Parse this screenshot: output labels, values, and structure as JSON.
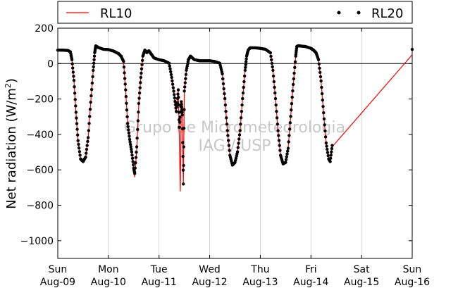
{
  "chart_data": {
    "type": "line",
    "ylabel": "Net radiation (W/m",
    "ylabel_sup": "2",
    "ylabel_close": ")",
    "ylim": [
      -1100,
      200
    ],
    "yticks": [
      200,
      0,
      -200,
      -400,
      -600,
      -800,
      -1000
    ],
    "ytick_labels": [
      "200",
      "0",
      "−200",
      "−400",
      "−600",
      "−800",
      "−1000"
    ],
    "xlim_days": [
      0,
      7
    ],
    "xticks": [
      {
        "day": 0,
        "top": "Sun",
        "bottom": "Aug-09"
      },
      {
        "day": 1,
        "top": "Mon",
        "bottom": "Aug-10"
      },
      {
        "day": 2,
        "top": "Tue",
        "bottom": "Aug-11"
      },
      {
        "day": 3,
        "top": "Wed",
        "bottom": "Aug-12"
      },
      {
        "day": 4,
        "top": "Thu",
        "bottom": "Aug-13"
      },
      {
        "day": 5,
        "top": "Fri",
        "bottom": "Aug-14"
      },
      {
        "day": 6,
        "top": "Sat",
        "bottom": "Aug-15"
      },
      {
        "day": 7,
        "top": "Sun",
        "bottom": "Aug-16"
      }
    ],
    "grid": "vertical",
    "zero_line": true,
    "legend_position": "top",
    "watermark": [
      "Grupo de Micrometeorologia",
      "IAG / USP"
    ],
    "series": [
      {
        "name": "RL10",
        "color": "#ff0000",
        "style": "line",
        "points": [
          [
            0.0,
            75
          ],
          [
            0.1,
            75
          ],
          [
            0.2,
            73
          ],
          [
            0.25,
            65
          ],
          [
            0.28,
            20
          ],
          [
            0.32,
            -100
          ],
          [
            0.36,
            -280
          ],
          [
            0.4,
            -440
          ],
          [
            0.45,
            -540
          ],
          [
            0.5,
            -555
          ],
          [
            0.55,
            -530
          ],
          [
            0.6,
            -420
          ],
          [
            0.65,
            -220
          ],
          [
            0.7,
            -40
          ],
          [
            0.73,
            60
          ],
          [
            0.75,
            100
          ],
          [
            0.8,
            90
          ],
          [
            0.9,
            80
          ],
          [
            1.0,
            78
          ],
          [
            1.1,
            70
          ],
          [
            1.2,
            55
          ],
          [
            1.25,
            40
          ],
          [
            1.3,
            10
          ],
          [
            1.34,
            -150
          ],
          [
            1.38,
            -340
          ],
          [
            1.42,
            -430
          ],
          [
            1.46,
            -500
          ],
          [
            1.5,
            -600
          ],
          [
            1.52,
            -640
          ],
          [
            1.56,
            -480
          ],
          [
            1.6,
            -230
          ],
          [
            1.64,
            -80
          ],
          [
            1.68,
            40
          ],
          [
            1.72,
            75
          ],
          [
            1.76,
            60
          ],
          [
            1.8,
            70
          ],
          [
            1.85,
            50
          ],
          [
            1.9,
            30
          ],
          [
            2.0,
            20
          ],
          [
            2.1,
            15
          ],
          [
            2.2,
            0
          ],
          [
            2.25,
            -80
          ],
          [
            2.3,
            -180
          ],
          [
            2.34,
            -280
          ],
          [
            2.38,
            -150
          ],
          [
            2.4,
            -420
          ],
          [
            2.42,
            -720
          ],
          [
            2.44,
            -220
          ],
          [
            2.46,
            -300
          ],
          [
            2.48,
            -680
          ],
          [
            2.5,
            -160
          ],
          [
            2.54,
            -40
          ],
          [
            2.58,
            20
          ],
          [
            2.62,
            40
          ],
          [
            2.7,
            20
          ],
          [
            2.8,
            15
          ],
          [
            2.9,
            15
          ],
          [
            3.0,
            15
          ],
          [
            3.1,
            10
          ],
          [
            3.2,
            0
          ],
          [
            3.25,
            -60
          ],
          [
            3.3,
            -200
          ],
          [
            3.35,
            -380
          ],
          [
            3.4,
            -520
          ],
          [
            3.45,
            -575
          ],
          [
            3.5,
            -560
          ],
          [
            3.55,
            -500
          ],
          [
            3.6,
            -380
          ],
          [
            3.65,
            -200
          ],
          [
            3.7,
            -40
          ],
          [
            3.73,
            40
          ],
          [
            3.76,
            75
          ],
          [
            3.8,
            88
          ],
          [
            3.9,
            88
          ],
          [
            4.0,
            85
          ],
          [
            4.1,
            80
          ],
          [
            4.2,
            60
          ],
          [
            4.25,
            -40
          ],
          [
            4.3,
            -200
          ],
          [
            4.35,
            -380
          ],
          [
            4.4,
            -520
          ],
          [
            4.45,
            -568
          ],
          [
            4.5,
            -560
          ],
          [
            4.55,
            -480
          ],
          [
            4.6,
            -300
          ],
          [
            4.65,
            -120
          ],
          [
            4.7,
            40
          ],
          [
            4.72,
            95
          ],
          [
            4.75,
            100
          ],
          [
            4.8,
            98
          ],
          [
            4.9,
            95
          ],
          [
            5.0,
            85
          ],
          [
            5.05,
            75
          ],
          [
            5.1,
            60
          ],
          [
            5.15,
            20
          ],
          [
            5.2,
            -100
          ],
          [
            5.25,
            -280
          ],
          [
            5.3,
            -450
          ],
          [
            5.35,
            -540
          ],
          [
            5.38,
            -555
          ],
          [
            5.42,
            -470
          ],
          [
            7.0,
            50
          ]
        ]
      },
      {
        "name": "RL20",
        "color": "#000000",
        "style": "dots",
        "points": [
          [
            0.0,
            76
          ],
          [
            0.1,
            76
          ],
          [
            0.2,
            74
          ],
          [
            0.25,
            66
          ],
          [
            0.28,
            22
          ],
          [
            0.32,
            -95
          ],
          [
            0.36,
            -275
          ],
          [
            0.4,
            -435
          ],
          [
            0.45,
            -538
          ],
          [
            0.5,
            -553
          ],
          [
            0.55,
            -528
          ],
          [
            0.6,
            -418
          ],
          [
            0.65,
            -218
          ],
          [
            0.7,
            -38
          ],
          [
            0.73,
            62
          ],
          [
            0.75,
            100
          ],
          [
            0.8,
            91
          ],
          [
            0.9,
            81
          ],
          [
            1.0,
            79
          ],
          [
            1.1,
            71
          ],
          [
            1.2,
            56
          ],
          [
            1.25,
            42
          ],
          [
            1.3,
            12
          ],
          [
            1.34,
            -148
          ],
          [
            1.38,
            -338
          ],
          [
            1.42,
            -428
          ],
          [
            1.46,
            -498
          ],
          [
            1.5,
            -590
          ],
          [
            1.52,
            -620
          ],
          [
            1.56,
            -470
          ],
          [
            1.6,
            -225
          ],
          [
            1.64,
            -78
          ],
          [
            1.68,
            42
          ],
          [
            1.72,
            76
          ],
          [
            1.76,
            62
          ],
          [
            1.8,
            72
          ],
          [
            1.85,
            52
          ],
          [
            1.9,
            32
          ],
          [
            2.0,
            22
          ],
          [
            2.1,
            16
          ],
          [
            2.2,
            2
          ],
          [
            2.25,
            -78
          ],
          [
            2.3,
            -175
          ],
          [
            2.34,
            -270
          ],
          [
            2.38,
            -148
          ],
          [
            2.4,
            -360
          ],
          [
            2.44,
            -215
          ],
          [
            2.46,
            -290
          ],
          [
            2.48,
            -680
          ],
          [
            2.5,
            -155
          ],
          [
            2.54,
            -38
          ],
          [
            2.58,
            22
          ],
          [
            2.62,
            42
          ],
          [
            2.7,
            22
          ],
          [
            2.8,
            16
          ],
          [
            2.9,
            16
          ],
          [
            3.0,
            16
          ],
          [
            3.1,
            12
          ],
          [
            3.2,
            2
          ],
          [
            3.25,
            -58
          ],
          [
            3.3,
            -198
          ],
          [
            3.35,
            -378
          ],
          [
            3.4,
            -518
          ],
          [
            3.45,
            -573
          ],
          [
            3.5,
            -558
          ],
          [
            3.55,
            -498
          ],
          [
            3.6,
            -378
          ],
          [
            3.65,
            -198
          ],
          [
            3.7,
            -38
          ],
          [
            3.73,
            42
          ],
          [
            3.76,
            76
          ],
          [
            3.8,
            89
          ],
          [
            3.9,
            89
          ],
          [
            4.0,
            86
          ],
          [
            4.1,
            81
          ],
          [
            4.2,
            61
          ],
          [
            4.25,
            -38
          ],
          [
            4.3,
            -198
          ],
          [
            4.35,
            -378
          ],
          [
            4.4,
            -518
          ],
          [
            4.45,
            -566
          ],
          [
            4.5,
            -558
          ],
          [
            4.55,
            -478
          ],
          [
            4.6,
            -298
          ],
          [
            4.65,
            -118
          ],
          [
            4.7,
            42
          ],
          [
            4.72,
            96
          ],
          [
            4.75,
            101
          ],
          [
            4.8,
            99
          ],
          [
            4.9,
            96
          ],
          [
            5.0,
            86
          ],
          [
            5.05,
            76
          ],
          [
            5.1,
            62
          ],
          [
            5.15,
            22
          ],
          [
            5.2,
            -98
          ],
          [
            5.25,
            -278
          ],
          [
            5.3,
            -448
          ],
          [
            5.35,
            -538
          ],
          [
            5.38,
            -553
          ],
          [
            5.42,
            -462
          ],
          [
            7.0,
            80
          ]
        ]
      }
    ]
  }
}
